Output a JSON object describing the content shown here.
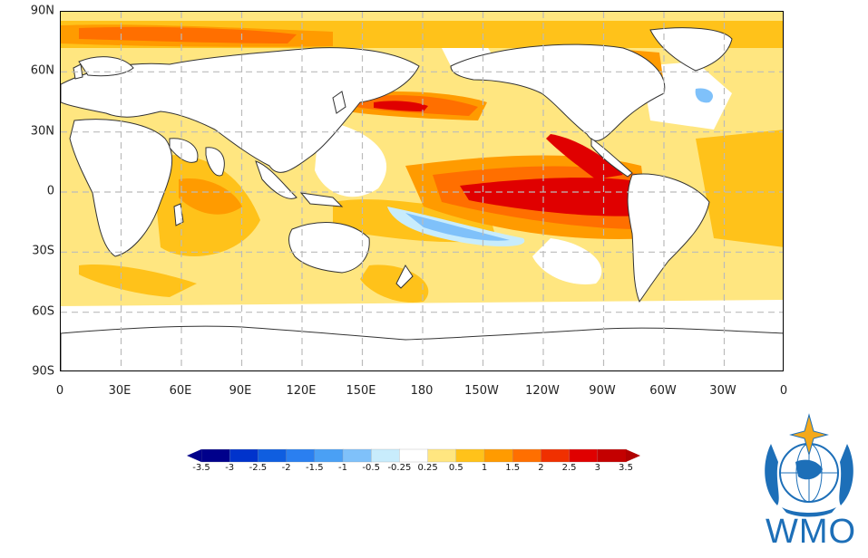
{
  "map": {
    "lat_labels": [
      "90N",
      "60N",
      "30N",
      "0",
      "30S",
      "60S",
      "90S"
    ],
    "lon_labels": [
      "0",
      "30E",
      "60E",
      "90E",
      "120E",
      "150E",
      "180",
      "150W",
      "120W",
      "90W",
      "60W",
      "30W",
      "0"
    ]
  },
  "colorbar": {
    "ticks": [
      "-3.5",
      "-3",
      "-2.5",
      "-2",
      "-1.5",
      "-1",
      "-0.5",
      "-0.25",
      "0.25",
      "0.5",
      "1",
      "1.5",
      "2",
      "2.5",
      "3",
      "3.5"
    ],
    "colors": [
      "#00008b",
      "#0033cc",
      "#0f5ee0",
      "#2a7ff0",
      "#4aa0f5",
      "#7fc1fa",
      "#c8ecfc",
      "#ffffff",
      "#ffe680",
      "#ffc21a",
      "#ff9b00",
      "#ff6f00",
      "#f03000",
      "#e00000",
      "#c40000"
    ],
    "under_color": "#00008b",
    "over_color": "#b00000"
  },
  "logo": {
    "text": "WMO"
  }
}
